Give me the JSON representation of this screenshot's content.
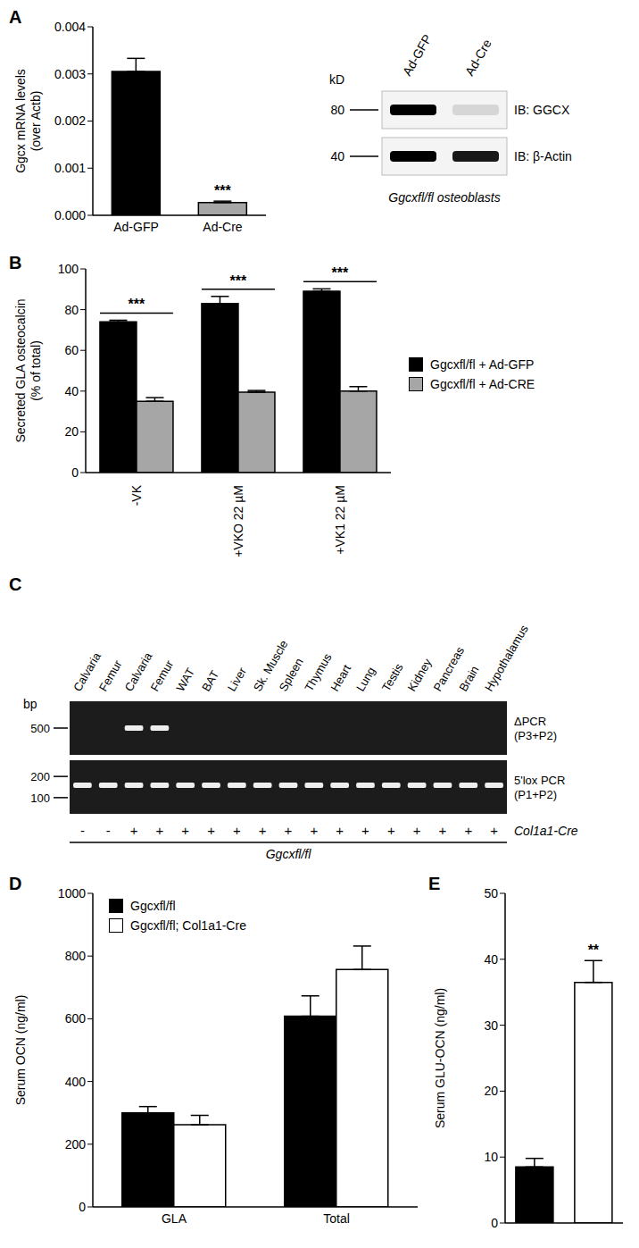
{
  "chart_data": [
    {
      "panel": "A",
      "type": "bar",
      "categories": [
        "Ad-GFP",
        "Ad-Cre"
      ],
      "values": [
        0.00305,
        0.00027
      ],
      "errors": [
        0.00028,
        3e-05
      ],
      "colors": [
        "#000000",
        "#a6a6a6"
      ],
      "y_label": [
        "Ggcx mRNA levels",
        "(over Actb)"
      ],
      "ylim": [
        0,
        0.004
      ],
      "yticks": [
        {
          "value": 0,
          "label": "0.000"
        },
        {
          "value": 0.001,
          "label": "0.001"
        },
        {
          "value": 0.002,
          "label": "0.002"
        },
        {
          "value": 0.003,
          "label": "0.003"
        },
        {
          "value": 0.004,
          "label": "0.004"
        }
      ],
      "annotations": [
        null,
        "***"
      ],
      "grid": false
    },
    {
      "panel": "B",
      "type": "bar",
      "categories": [
        "-VK",
        "+VKO 22 µM",
        "+VK1 22 µM"
      ],
      "series": [
        {
          "name": "Ggcxfl/fl + Ad-GFP",
          "color": "#000000",
          "values": [
            74,
            83,
            89
          ],
          "errors": [
            0.8,
            3.5,
            1.2
          ]
        },
        {
          "name": "Ggcxfl/fl + Ad-CRE",
          "color": "#a6a6a6",
          "values": [
            35,
            39.5,
            40
          ],
          "errors": [
            1.8,
            0.8,
            2.2
          ]
        }
      ],
      "y_label": [
        "Secreted GLA osteocalcin",
        "(% of total)"
      ],
      "ylim": [
        0,
        100
      ],
      "yticks": [
        0,
        20,
        40,
        60,
        80,
        100
      ],
      "annotations": [
        "***",
        "***",
        "***"
      ],
      "legend": "right",
      "grid": false
    },
    {
      "panel": "D",
      "type": "bar",
      "categories": [
        "GLA",
        "Total"
      ],
      "series": [
        {
          "name": "Ggcxfl/fl",
          "color": "#000000",
          "values": [
            300,
            608
          ],
          "errors": [
            20,
            65
          ]
        },
        {
          "name": "Ggcxfl/fl; Col1a1-Cre",
          "color": "#ffffff",
          "values": [
            262,
            757
          ],
          "errors": [
            30,
            75
          ]
        }
      ],
      "y_label": [
        "Serum OCN (ng/ml)"
      ],
      "ylim": [
        0,
        1000
      ],
      "yticks": [
        0,
        200,
        400,
        600,
        800,
        1000
      ],
      "legend": "upper left",
      "grid": false
    },
    {
      "panel": "E",
      "type": "bar",
      "categories": [
        null,
        null
      ],
      "values": [
        8.5,
        36.5
      ],
      "errors": [
        1.3,
        3.3
      ],
      "colors": [
        "#000000",
        "#ffffff"
      ],
      "y_label": [
        "Serum GLU-OCN (ng/ml)"
      ],
      "ylim": [
        0,
        50
      ],
      "yticks": [
        0,
        10,
        20,
        30,
        40,
        50
      ],
      "annotations": [
        null,
        "**"
      ],
      "tick_labels": "y",
      "grid": false
    }
  ],
  "blot": {
    "unit": "kD",
    "lanes": [
      "Ad-GFP",
      "Ad-Cre"
    ],
    "rows": [
      {
        "label": "IB: GGCX",
        "marker": 80,
        "intensity": [
          1,
          0.12
        ]
      },
      {
        "label": "IB: β-Actin",
        "marker": 40,
        "intensity": [
          1,
          0.9
        ]
      }
    ],
    "caption": "Ggcxfl/fl osteoblasts"
  },
  "gel": {
    "panel": "C",
    "unit": "bp",
    "lanes": [
      "Calvaria",
      "Femur",
      "Calvaria",
      "Femur",
      "WAT",
      "BAT",
      "Liver",
      "Sk. Muscle",
      "Spleen",
      "Thymus",
      "Heart",
      "Lung",
      "Testis",
      "Kidney",
      "Pancreas",
      "Brain",
      "Hypothalamus"
    ],
    "rows": [
      {
        "label": [
          "ΔPCR",
          "(P3+P2)"
        ],
        "markers": [
          500
        ],
        "bands": [
          null,
          null,
          500,
          500,
          null,
          null,
          null,
          null,
          null,
          null,
          null,
          null,
          null,
          null,
          null,
          null,
          null
        ]
      },
      {
        "label": [
          "5'lox PCR",
          "(P1+P2)"
        ],
        "markers": [
          200,
          100
        ],
        "bands": [
          150,
          150,
          150,
          150,
          150,
          150,
          150,
          150,
          150,
          150,
          150,
          150,
          150,
          150,
          150,
          150,
          150
        ]
      }
    ],
    "cre": [
      "-",
      "-",
      "+",
      "+",
      "+",
      "+",
      "+",
      "+",
      "+",
      "+",
      "+",
      "+",
      "+",
      "+",
      "+",
      "+",
      "+"
    ],
    "cre_label": "Col1a1-Cre",
    "genotype": "Ggcxfl/fl"
  }
}
